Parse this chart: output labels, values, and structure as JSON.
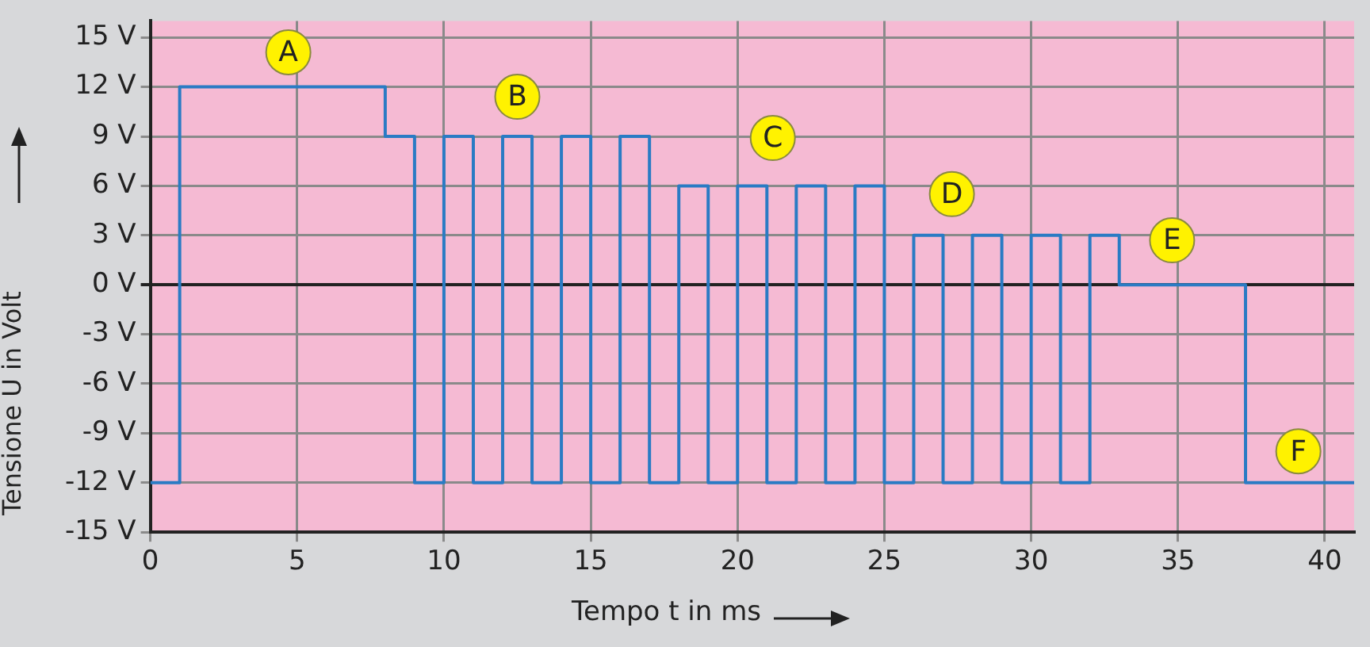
{
  "chart_data": {
    "type": "step",
    "xlabel": "Tempo t in ms",
    "ylabel": "Tensione U in Volt",
    "x": [
      0,
      1,
      8,
      9,
      10,
      11,
      12,
      13,
      14,
      15,
      16,
      17,
      18,
      19,
      20,
      21,
      22,
      23,
      24,
      25,
      26,
      27,
      28,
      29,
      30,
      31,
      32,
      33,
      37.3,
      41
    ],
    "series": [
      {
        "color": "#2a7bc4",
        "values": [
          -12,
          12,
          9,
          -12,
          9,
          -12,
          9,
          -12,
          9,
          -12,
          9,
          -12,
          6,
          -12,
          6,
          -12,
          6,
          -12,
          6,
          -12,
          3,
          -12,
          3,
          -12,
          3,
          -12,
          3,
          0,
          -12,
          -12
        ]
      }
    ],
    "xlim": [
      0,
      41
    ],
    "xticks": [
      0,
      5,
      10,
      15,
      20,
      25,
      30,
      35,
      40
    ],
    "ylim": [
      -15,
      16
    ],
    "yticks": [
      {
        "value": -15,
        "label": "-15 V"
      },
      {
        "value": -12,
        "label": "-12 V"
      },
      {
        "value": -9,
        "label": "-9 V"
      },
      {
        "value": -6,
        "label": "-6 V"
      },
      {
        "value": -3,
        "label": "-3 V"
      },
      {
        "value": 0,
        "label": "0 V"
      },
      {
        "value": 3,
        "label": "3 V"
      },
      {
        "value": 6,
        "label": "6 V"
      },
      {
        "value": 9,
        "label": "9 V"
      },
      {
        "value": 12,
        "label": "12 V"
      },
      {
        "value": 15,
        "label": "15 V"
      }
    ],
    "annotations": [
      {
        "text": "A",
        "x": 4.7,
        "y": 14.1
      },
      {
        "text": "B",
        "x": 12.5,
        "y": 11.4
      },
      {
        "text": "C",
        "x": 21.2,
        "y": 8.9
      },
      {
        "text": "D",
        "x": 27.3,
        "y": 5.5
      },
      {
        "text": "E",
        "x": 34.8,
        "y": 2.7
      },
      {
        "text": "F",
        "x": 39.1,
        "y": -10.1
      }
    ],
    "grid": true,
    "legend": false,
    "marker": "none",
    "line_style": "solid"
  }
}
